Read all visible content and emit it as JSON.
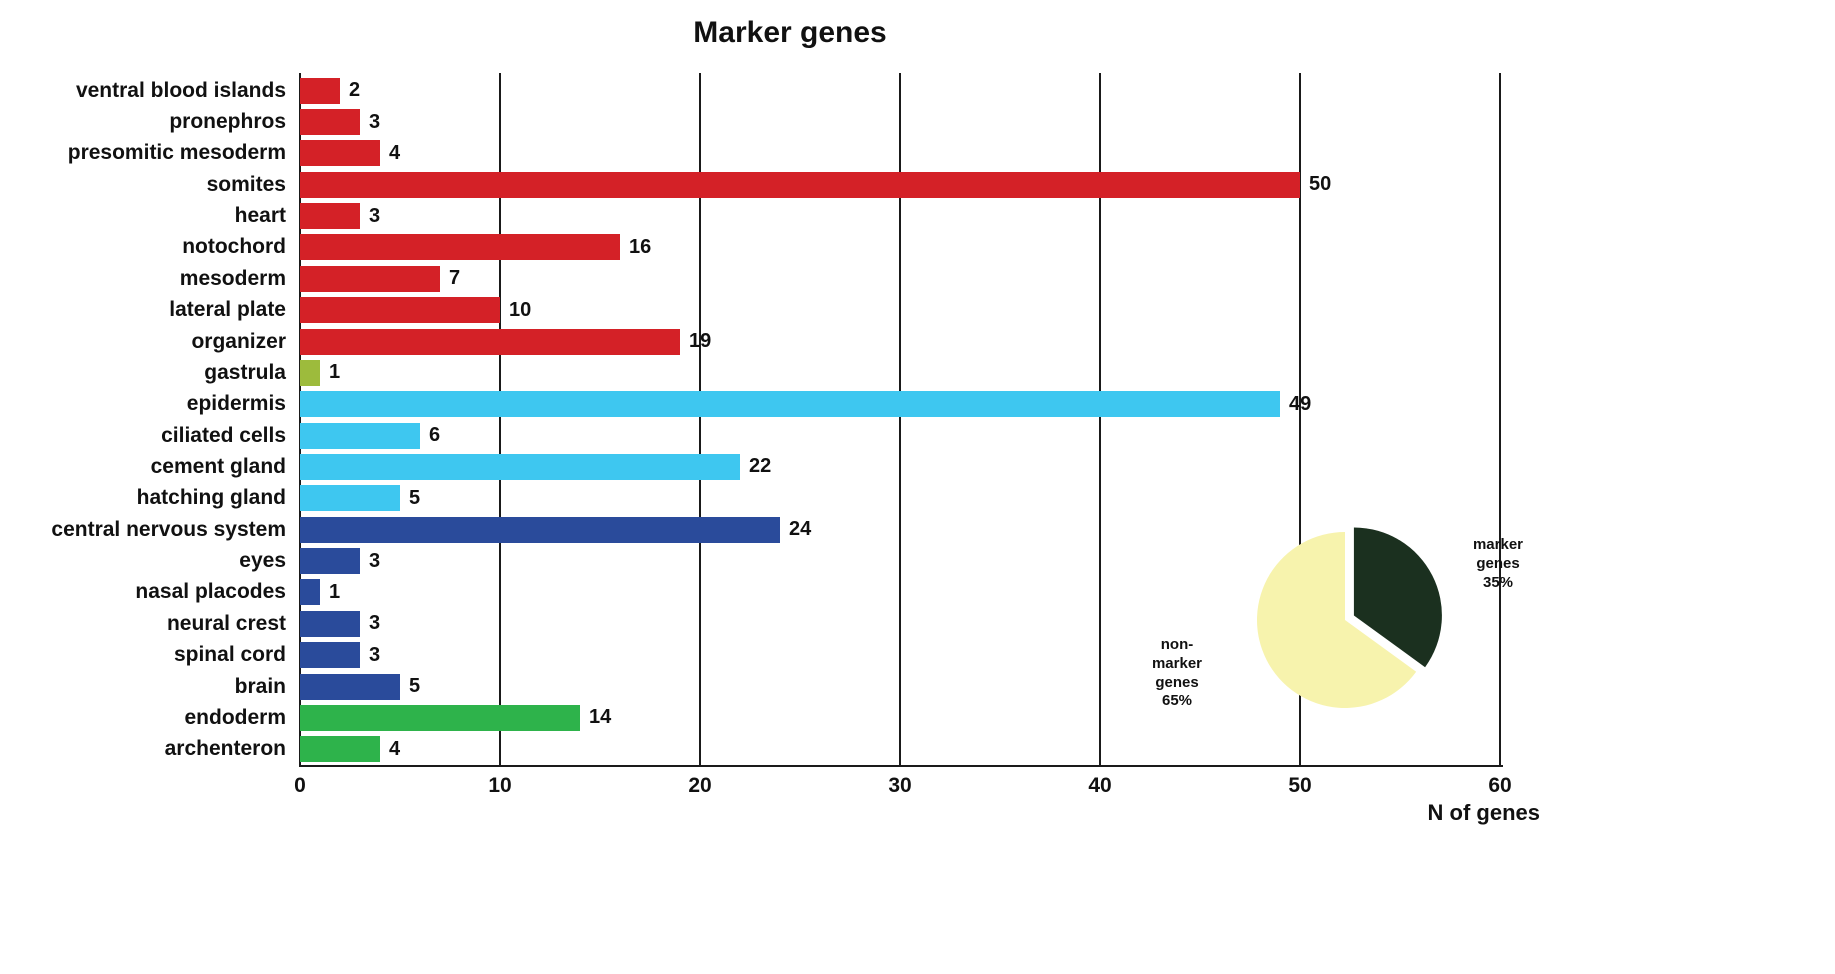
{
  "chart_data": {
    "type": "bar",
    "orientation": "horizontal",
    "title": "Marker genes",
    "xlabel": "N of genes",
    "xlim": [
      0,
      60
    ],
    "xticks": [
      0,
      10,
      20,
      30,
      40,
      50,
      60
    ],
    "grid": "vertical-lines-on",
    "categories": [
      "ventral blood islands",
      "pronephros",
      "presomitic mesoderm",
      "somites",
      "heart",
      "notochord",
      "mesoderm",
      "lateral plate",
      "organizer",
      "gastrula",
      "epidermis",
      "ciliated cells",
      "cement gland",
      "hatching gland",
      "central nervous system",
      "eyes",
      "nasal placodes",
      "neural crest",
      "spinal cord",
      "brain",
      "endoderm",
      "archenteron"
    ],
    "values": [
      2,
      3,
      4,
      50,
      3,
      16,
      7,
      10,
      19,
      1,
      49,
      6,
      22,
      5,
      24,
      3,
      1,
      3,
      3,
      5,
      14,
      4
    ],
    "colors": [
      "#d42127",
      "#d42127",
      "#d42127",
      "#d42127",
      "#d42127",
      "#d42127",
      "#d42127",
      "#d42127",
      "#d42127",
      "#9dbb3c",
      "#3ec7f0",
      "#3ec7f0",
      "#3ec7f0",
      "#3ec7f0",
      "#2a4b9b",
      "#2a4b9b",
      "#2a4b9b",
      "#2a4b9b",
      "#2a4b9b",
      "#2a4b9b",
      "#2eb34b",
      "#2eb34b"
    ],
    "group_colors": {
      "mesodermal": "#d42127",
      "gastrula": "#9dbb3c",
      "ectodermal_epidermal": "#3ec7f0",
      "neural": "#2a4b9b",
      "endodermal": "#2eb34b"
    },
    "inset_pie": {
      "type": "pie",
      "legend_position": "inset-bottom-right",
      "slices": [
        {
          "label": "marker\ngenes\n35%",
          "value": 35,
          "color": "#1b301f",
          "exploded": true
        },
        {
          "label": "non-\nmarker\ngenes\n65%",
          "value": 65,
          "color": "#f7f3ad",
          "exploded": false
        }
      ]
    }
  }
}
